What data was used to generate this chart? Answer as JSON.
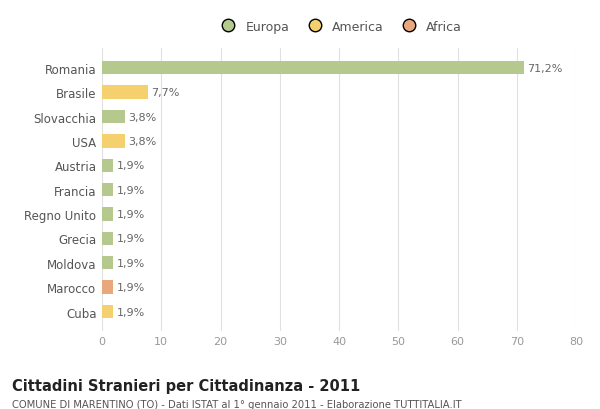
{
  "countries": [
    "Romania",
    "Brasile",
    "Slovacchia",
    "USA",
    "Austria",
    "Francia",
    "Regno Unito",
    "Grecia",
    "Moldova",
    "Marocco",
    "Cuba"
  ],
  "values": [
    71.2,
    7.7,
    3.8,
    3.8,
    1.9,
    1.9,
    1.9,
    1.9,
    1.9,
    1.9,
    1.9
  ],
  "labels": [
    "71,2%",
    "7,7%",
    "3,8%",
    "3,8%",
    "1,9%",
    "1,9%",
    "1,9%",
    "1,9%",
    "1,9%",
    "1,9%",
    "1,9%"
  ],
  "colors": [
    "#b5c98e",
    "#f5d06e",
    "#b5c98e",
    "#f5d06e",
    "#b5c98e",
    "#b5c98e",
    "#b5c98e",
    "#b5c98e",
    "#b5c98e",
    "#e8a87c",
    "#f5d06e"
  ],
  "legend_labels": [
    "Europa",
    "America",
    "Africa"
  ],
  "legend_colors": [
    "#b5c98e",
    "#f5d06e",
    "#e8a87c"
  ],
  "title": "Cittadini Stranieri per Cittadinanza - 2011",
  "subtitle": "COMUNE DI MARENTINO (TO) - Dati ISTAT al 1° gennaio 2011 - Elaborazione TUTTITALIA.IT",
  "xlim": [
    0,
    80
  ],
  "xticks": [
    0,
    10,
    20,
    30,
    40,
    50,
    60,
    70,
    80
  ],
  "background_color": "#ffffff",
  "grid_color": "#e0e0e0",
  "bar_height": 0.55
}
